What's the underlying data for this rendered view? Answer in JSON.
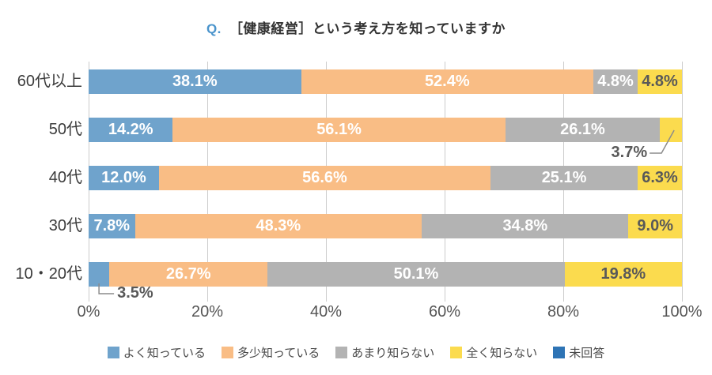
{
  "title": {
    "prefix": "Q.",
    "text": "［健康経営］という考え方を知っていますか"
  },
  "chart_data": {
    "type": "bar",
    "stacked": true,
    "orientation": "horizontal",
    "categories": [
      "60代以上",
      "50代",
      "40代",
      "30代",
      "10・20代"
    ],
    "series": [
      {
        "name": "よく知っている",
        "color": "#6FA3CC",
        "label_color": "#FFFFFF",
        "values": [
          38.1,
          14.2,
          12.0,
          7.8,
          3.5
        ]
      },
      {
        "name": "多少知っている",
        "color": "#F9BD85",
        "label_color": "#FFFFFF",
        "values": [
          52.4,
          56.1,
          56.6,
          48.3,
          26.7
        ]
      },
      {
        "name": "あまり知らない",
        "color": "#B3B3B3",
        "label_color": "#FFFFFF",
        "values": [
          4.8,
          26.1,
          25.1,
          34.8,
          50.1
        ]
      },
      {
        "name": "全く知らない",
        "color": "#FBDB4E",
        "label_color": "#595959",
        "values": [
          4.8,
          3.7,
          6.3,
          9.0,
          19.8
        ]
      }
    ],
    "legend": [
      {
        "label": "よく知っている",
        "color": "#6FA3CC"
      },
      {
        "label": "多少知っている",
        "color": "#F9BD85"
      },
      {
        "label": "あまり知らない",
        "color": "#B3B3B3"
      },
      {
        "label": "全く知らない",
        "color": "#FBDB4E"
      },
      {
        "label": "未回答",
        "color": "#2E74B5"
      }
    ],
    "legend_position": "bottom",
    "x_axis": {
      "min": 0,
      "max": 100,
      "grid": true,
      "ticks": [
        "0%",
        "20%",
        "40%",
        "60%",
        "80%",
        "100%"
      ]
    },
    "outside_labels": [
      {
        "category_index": 1,
        "series_index": 3,
        "text": "3.7%",
        "direction": "left"
      },
      {
        "category_index": 4,
        "series_index": 0,
        "text": "3.5%",
        "direction": "right"
      }
    ]
  },
  "colors": {
    "question_prefix": "#4A94CC",
    "grid": "#CCCCCC",
    "leader_line": "#8C8C8C",
    "axis_text": "#555555",
    "category_text": "#3C3C3C",
    "background": "#FFFFFF"
  }
}
